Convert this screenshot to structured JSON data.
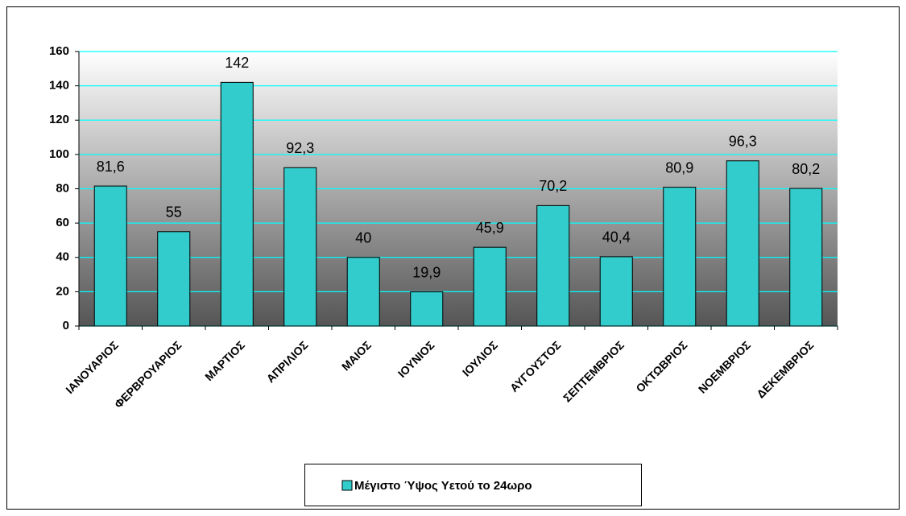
{
  "chart_data": {
    "type": "bar",
    "categories": [
      "ΙΑΝΟΥΑΡΙΟΣ",
      "ΦΕΡΒΡΟΥΑΡΙΟΣ",
      "ΜΑΡΤΙΟΣ",
      "ΑΠΡΙΛΙΟΣ",
      "ΜΑΙΟΣ",
      "ΙΟΥΝΙΟΣ",
      "ΙΟΥΛΙΟΣ",
      "ΑΥΓΟΥΣΤΟΣ",
      "ΣΕΠΤΕΜΒΡΙΟΣ",
      "ΟΚΤΩΒΡΙΟΣ",
      "ΝΟΕΜΒΡΙΟΣ",
      "ΔΕΚΕΜΒΡΙΟΣ"
    ],
    "series": [
      {
        "name": "Μέγιστο Ύψος Υετού το 24ωρο",
        "color": "#33cccc",
        "values": [
          81.6,
          55,
          142,
          92.3,
          40,
          19.9,
          45.9,
          70.2,
          40.4,
          80.9,
          96.3,
          80.2
        ],
        "value_labels": [
          "81,6",
          "55",
          "142",
          "92,3",
          "40",
          "19,9",
          "45,9",
          "70,2",
          "40,4",
          "80,9",
          "96,3",
          "80,2"
        ]
      }
    ],
    "ylim": [
      0,
      160
    ],
    "yticks": [
      0,
      20,
      40,
      60,
      80,
      100,
      120,
      140,
      160
    ],
    "grid": true,
    "grid_color": "#00ffff",
    "legend": "bottom"
  }
}
